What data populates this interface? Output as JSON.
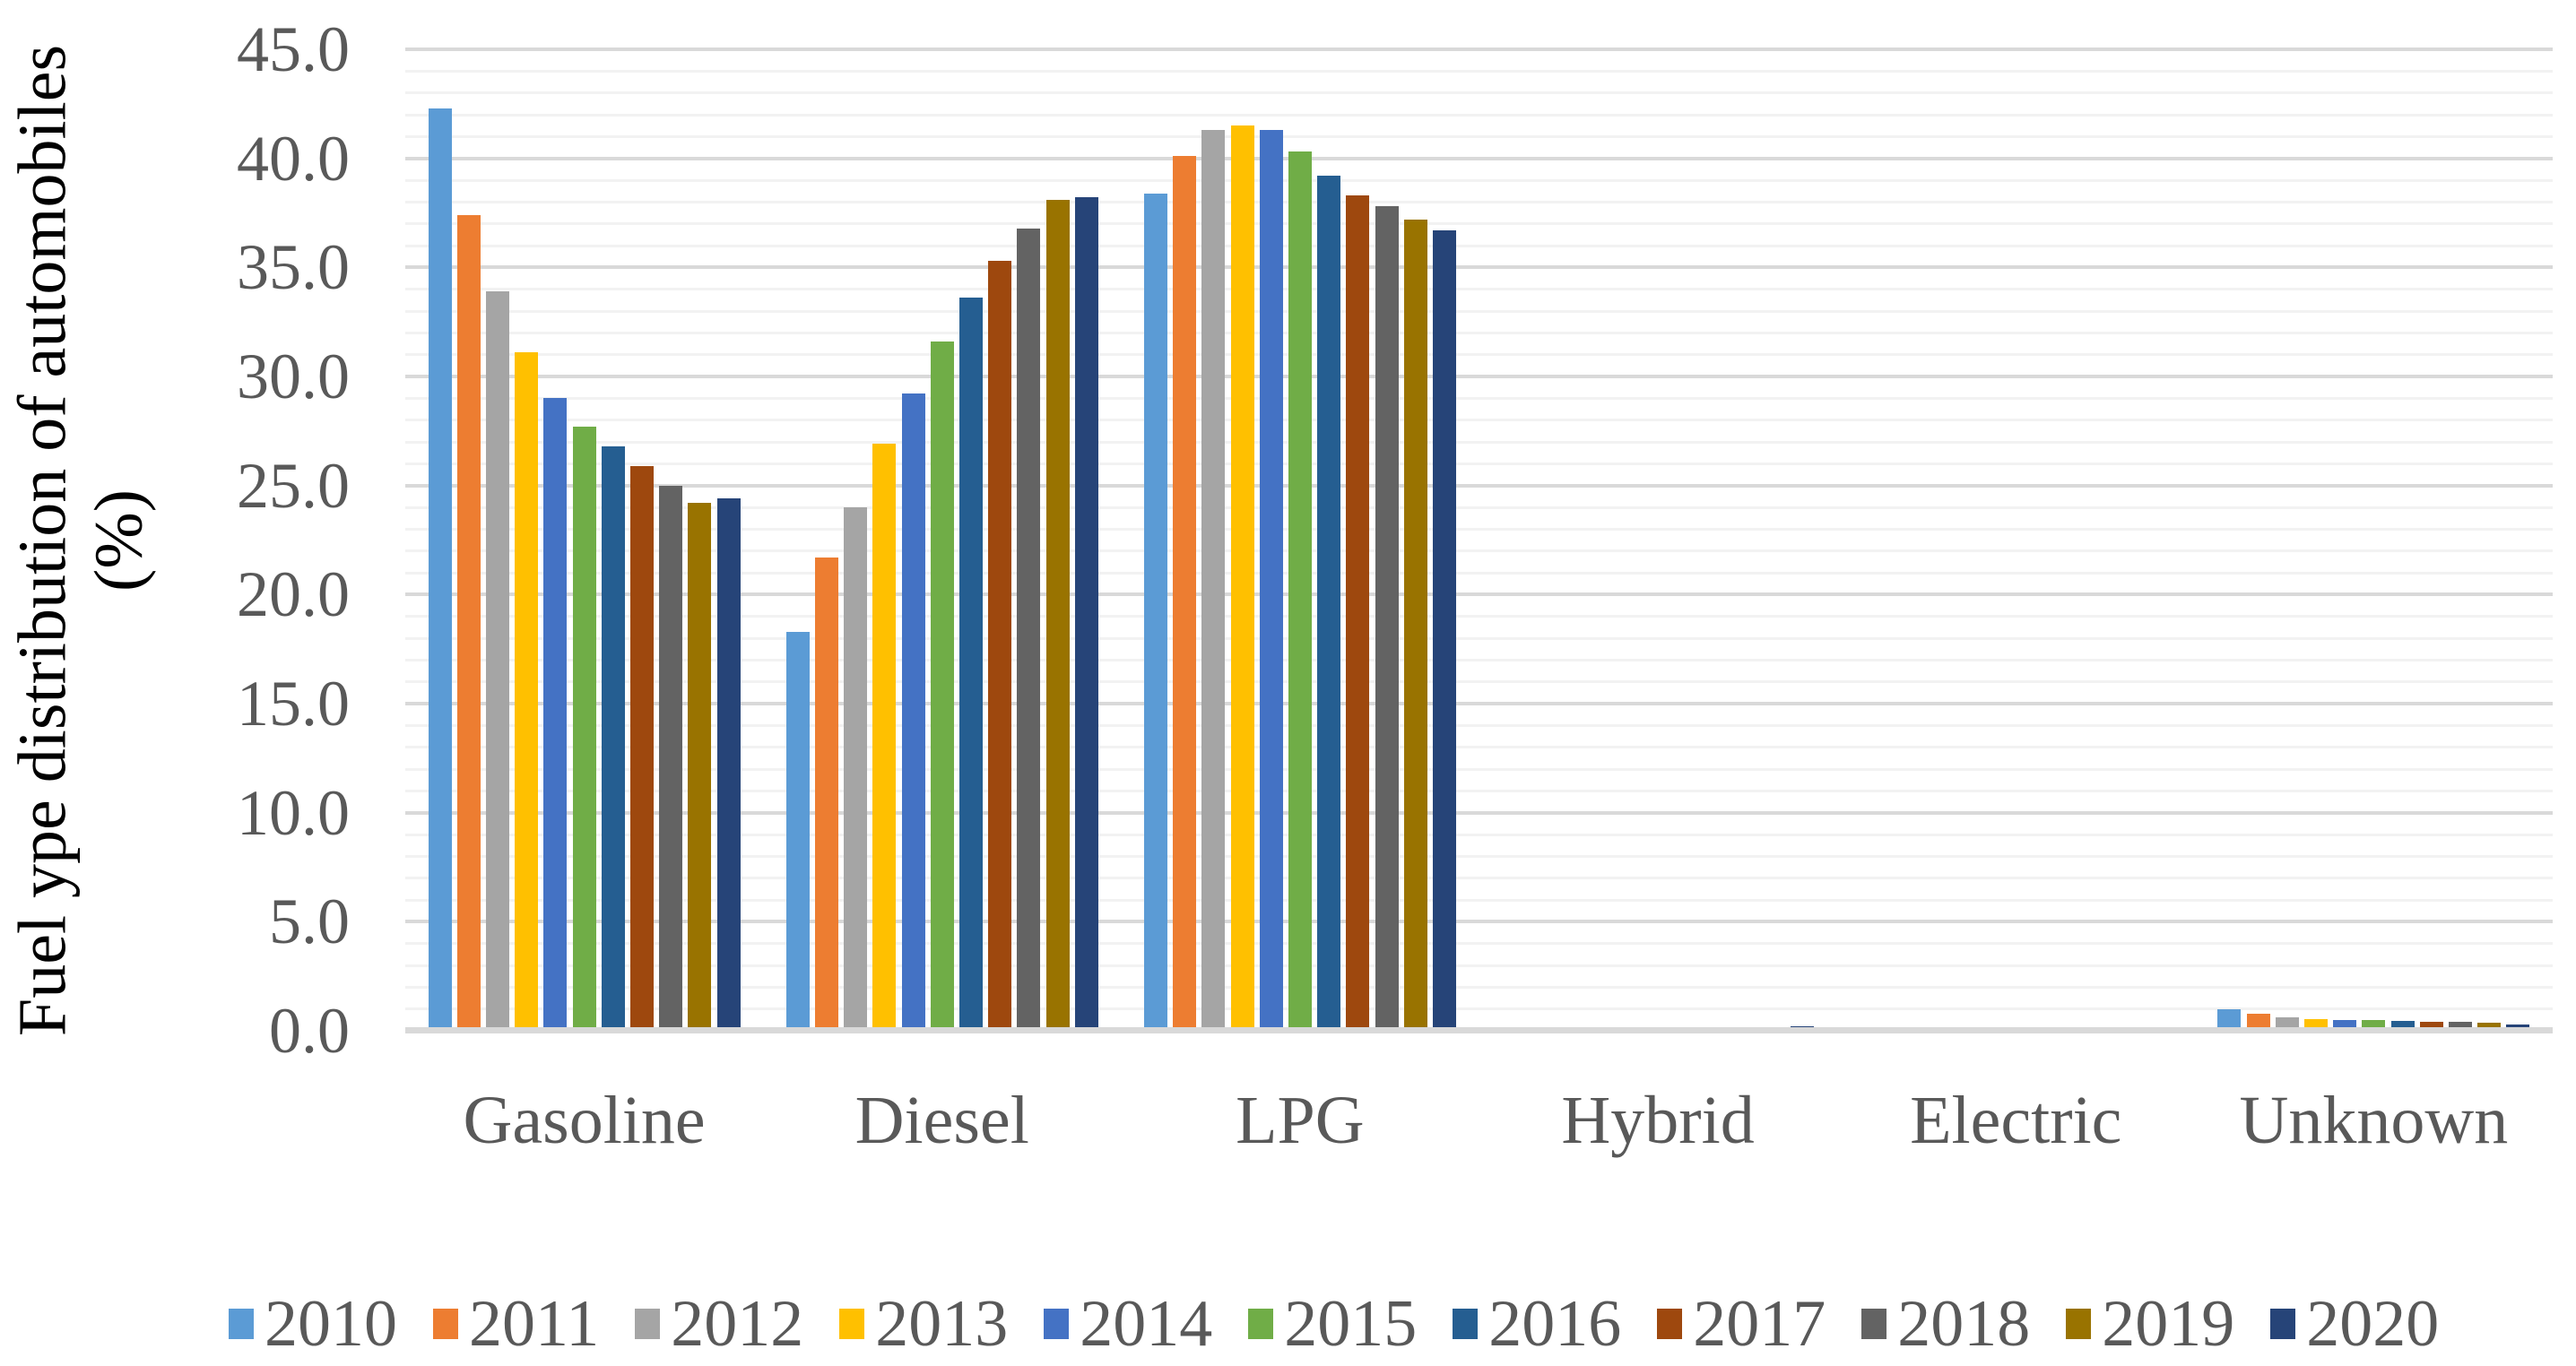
{
  "chart_data": {
    "type": "bar",
    "title": "",
    "ylabel_line1": "Fuel ype distribution of automobiles",
    "ylabel_line2": "(%)",
    "ylim": [
      0,
      45
    ],
    "ymajor_step": 5,
    "yminor_step": 1,
    "ytick_labels": [
      "45.0",
      "40.0",
      "35.0",
      "30.0",
      "25.0",
      "20.0",
      "15.0",
      "10.0",
      "5.0",
      "0.0"
    ],
    "grid": "horizontal major every 5.0 (#D9D9D9) and minor every 1.0 (#F2F2F2), no vertical gridlines",
    "legend_position": "bottom",
    "categories": [
      "Gasoline",
      "Diesel",
      "LPG",
      "Hybrid",
      "Electric",
      "Unknown"
    ],
    "series": [
      {
        "name": "2010",
        "color": "#5B9BD5",
        "values": [
          42.3,
          18.3,
          38.4,
          0,
          0,
          1.0
        ]
      },
      {
        "name": "2011",
        "color": "#ED7D31",
        "values": [
          37.4,
          21.7,
          40.1,
          0,
          0,
          0.8
        ]
      },
      {
        "name": "2012",
        "color": "#A5A5A5",
        "values": [
          33.9,
          24.0,
          41.3,
          0,
          0,
          0.6
        ]
      },
      {
        "name": "2013",
        "color": "#FFC000",
        "values": [
          31.1,
          26.9,
          41.5,
          0,
          0,
          0.55
        ]
      },
      {
        "name": "2014",
        "color": "#4472C4",
        "values": [
          29.0,
          29.2,
          41.3,
          0,
          0,
          0.5
        ]
      },
      {
        "name": "2015",
        "color": "#70AD47",
        "values": [
          27.7,
          31.6,
          40.3,
          0,
          0,
          0.5
        ]
      },
      {
        "name": "2016",
        "color": "#255E91",
        "values": [
          26.8,
          33.6,
          39.2,
          0,
          0,
          0.45
        ]
      },
      {
        "name": "2017",
        "color": "#9E480E",
        "values": [
          25.9,
          35.3,
          38.3,
          0,
          0,
          0.4
        ]
      },
      {
        "name": "2018",
        "color": "#636363",
        "values": [
          25.0,
          36.8,
          37.8,
          0,
          0,
          0.4
        ]
      },
      {
        "name": "2019",
        "color": "#997300",
        "values": [
          24.2,
          38.1,
          37.2,
          0,
          0,
          0.35
        ]
      },
      {
        "name": "2020",
        "color": "#264478",
        "values": [
          24.4,
          38.2,
          36.7,
          0.2,
          0,
          0.3
        ]
      }
    ],
    "axis_text_color": "#595959",
    "title_text_color": "#000000",
    "gridline_major_color": "#D9D9D9",
    "gridline_minor_color": "#F2F2F2",
    "axis_line_color": "#D9D9D9"
  }
}
